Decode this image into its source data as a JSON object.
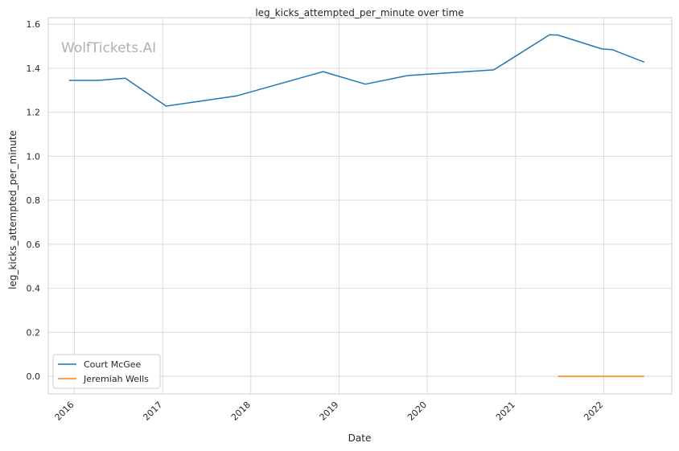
{
  "chart_data": {
    "type": "line",
    "title": "leg_kicks_attempted_per_minute over time",
    "xlabel": "Date",
    "ylabel": "leg_kicks_attempted_per_minute",
    "watermark": "WolfTickets.AI",
    "x_ticks": [
      "2016",
      "2017",
      "2018",
      "2019",
      "2020",
      "2021",
      "2022"
    ],
    "y_ticks": [
      "0.0",
      "0.2",
      "0.4",
      "0.6",
      "0.8",
      "1.0",
      "1.2",
      "1.4",
      "1.6"
    ],
    "xlim": [
      "2015-09-15",
      "2022-10-10"
    ],
    "ylim": [
      -0.08,
      1.63
    ],
    "grid": true,
    "legend_position": "lower-left",
    "series": [
      {
        "name": "Court McGee",
        "color": "#1f77b4",
        "points": [
          {
            "x": "2015-12-10",
            "y": 1.345
          },
          {
            "x": "2016-04-10",
            "y": 1.345
          },
          {
            "x": "2016-07-30",
            "y": 1.355
          },
          {
            "x": "2017-01-15",
            "y": 1.228
          },
          {
            "x": "2017-11-04",
            "y": 1.275
          },
          {
            "x": "2018-10-27",
            "y": 1.385
          },
          {
            "x": "2019-04-20",
            "y": 1.328
          },
          {
            "x": "2019-10-12",
            "y": 1.367
          },
          {
            "x": "2020-10-03",
            "y": 1.393
          },
          {
            "x": "2021-05-22",
            "y": 1.552
          },
          {
            "x": "2021-06-26",
            "y": 1.551
          },
          {
            "x": "2021-12-25",
            "y": 1.488
          },
          {
            "x": "2022-02-05",
            "y": 1.485
          },
          {
            "x": "2022-06-18",
            "y": 1.428
          }
        ]
      },
      {
        "name": "Jeremiah Wells",
        "color": "#ff7f0e",
        "points": [
          {
            "x": "2021-06-26",
            "y": 0.0
          },
          {
            "x": "2022-06-18",
            "y": 0.0
          }
        ]
      }
    ]
  }
}
